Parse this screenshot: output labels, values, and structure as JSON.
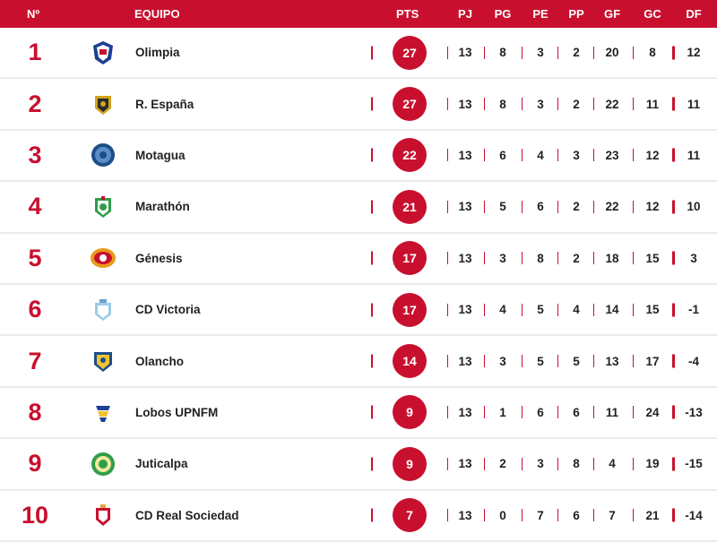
{
  "header": {
    "pos": "Nº",
    "team": "EQUIPO",
    "pts": "PTS",
    "pj": "PJ",
    "pg": "PG",
    "pe": "PE",
    "pp": "PP",
    "gf": "GF",
    "gc": "GC",
    "df": "DF"
  },
  "colors": {
    "accent": "#c8102e",
    "row_divider": "#ebebeb"
  },
  "rows": [
    {
      "pos": "1",
      "team": "Olimpia",
      "logo": "olimpia-crest-icon",
      "pts": "27",
      "pj": "13",
      "pg": "8",
      "pe": "3",
      "pp": "2",
      "gf": "20",
      "gc": "8",
      "df": "12"
    },
    {
      "pos": "2",
      "team": "R. España",
      "logo": "real-espana-crest-icon",
      "pts": "27",
      "pj": "13",
      "pg": "8",
      "pe": "3",
      "pp": "2",
      "gf": "22",
      "gc": "11",
      "df": "11"
    },
    {
      "pos": "3",
      "team": "Motagua",
      "logo": "motagua-crest-icon",
      "pts": "22",
      "pj": "13",
      "pg": "6",
      "pe": "4",
      "pp": "3",
      "gf": "23",
      "gc": "12",
      "df": "11"
    },
    {
      "pos": "4",
      "team": "Marathón",
      "logo": "marathon-crest-icon",
      "pts": "21",
      "pj": "13",
      "pg": "5",
      "pe": "6",
      "pp": "2",
      "gf": "22",
      "gc": "12",
      "df": "10"
    },
    {
      "pos": "5",
      "team": "Génesis",
      "logo": "genesis-crest-icon",
      "pts": "17",
      "pj": "13",
      "pg": "3",
      "pe": "8",
      "pp": "2",
      "gf": "18",
      "gc": "15",
      "df": "3"
    },
    {
      "pos": "6",
      "team": "CD Victoria",
      "logo": "victoria-crest-icon",
      "pts": "17",
      "pj": "13",
      "pg": "4",
      "pe": "5",
      "pp": "4",
      "gf": "14",
      "gc": "15",
      "df": "-1"
    },
    {
      "pos": "7",
      "team": "Olancho",
      "logo": "olancho-crest-icon",
      "pts": "14",
      "pj": "13",
      "pg": "3",
      "pe": "5",
      "pp": "5",
      "gf": "13",
      "gc": "17",
      "df": "-4"
    },
    {
      "pos": "8",
      "team": "Lobos UPNFM",
      "logo": "lobos-crest-icon",
      "pts": "9",
      "pj": "13",
      "pg": "1",
      "pe": "6",
      "pp": "6",
      "gf": "11",
      "gc": "24",
      "df": "-13"
    },
    {
      "pos": "9",
      "team": "Juticalpa",
      "logo": "juticalpa-crest-icon",
      "pts": "9",
      "pj": "13",
      "pg": "2",
      "pe": "3",
      "pp": "8",
      "gf": "4",
      "gc": "19",
      "df": "-15"
    },
    {
      "pos": "10",
      "team": "CD Real Sociedad",
      "logo": "real-sociedad-crest-icon",
      "pts": "7",
      "pj": "13",
      "pg": "0",
      "pe": "7",
      "pp": "6",
      "gf": "7",
      "gc": "21",
      "df": "-14"
    }
  ]
}
